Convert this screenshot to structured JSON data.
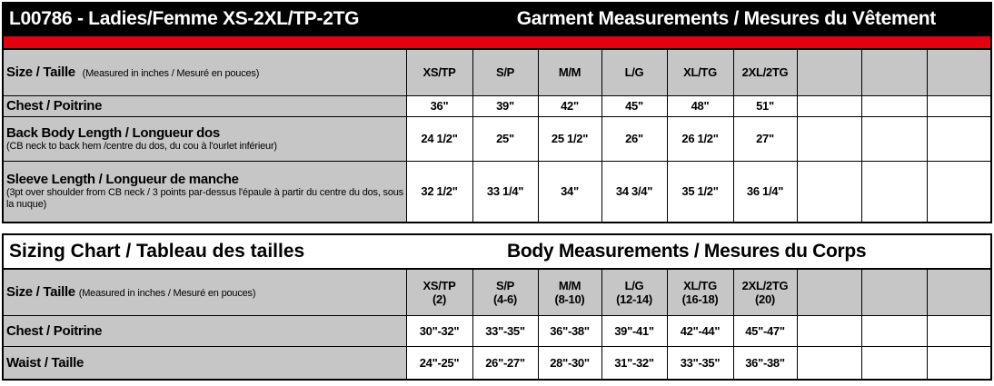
{
  "garment": {
    "title": "L00786 - Ladies/Femme XS-2XL/TP-2TG",
    "section": "Garment Measurements / Mesures du Vêtement",
    "size_label": "Size / Taille",
    "size_note": "(Measured in inches / Mesuré en pouces)",
    "sizes": [
      "XS/TP",
      "S/P",
      "M/M",
      "L/G",
      "XL/TG",
      "2XL/2TG"
    ],
    "rows": [
      {
        "label": "Chest / Poitrine",
        "note": "",
        "values": [
          "36\"",
          "39\"",
          "42\"",
          "45\"",
          "48\"",
          "51\""
        ]
      },
      {
        "label": "Back Body Length / Longueur dos",
        "note": "(CB neck to back hem /centre du dos, du cou à l'ourlet inférieur)",
        "values": [
          "24 1/2\"",
          "25\"",
          "25 1/2\"",
          "26\"",
          "26 1/2\"",
          "27\""
        ]
      },
      {
        "label": "Sleeve Length / Longueur de manche",
        "note": " (3pt over shoulder from CB neck / 3 points par-dessus l'épaule à partir du centre du dos, sous la nuque)",
        "values": [
          "32 1/2\"",
          "33 1/4\"",
          "34\"",
          "34 3/4\"",
          "35 1/2\"",
          "36 1/4\""
        ]
      }
    ]
  },
  "body": {
    "title": "Sizing Chart / Tableau des tailles",
    "section": "Body Measurements / Mesures du Corps",
    "size_label": "Size / Taille",
    "size_note": "(Measured in inches / Mesuré en pouces)",
    "sizes": [
      {
        "name": "XS/TP",
        "range": "(2)"
      },
      {
        "name": "S/P",
        "range": "(4-6)"
      },
      {
        "name": "M/M",
        "range": "(8-10)"
      },
      {
        "name": "L/G",
        "range": "(12-14)"
      },
      {
        "name": "XL/TG",
        "range": "(16-18)"
      },
      {
        "name": "2XL/2TG",
        "range": "(20)"
      }
    ],
    "rows": [
      {
        "label": "Chest / Poitrine",
        "values": [
          "30\"-32\"",
          "33\"-35\"",
          "36\"-38\"",
          "39\"-41\"",
          "42\"-44\"",
          "45\"-47\""
        ]
      },
      {
        "label": "Waist / Taille",
        "values": [
          "24\"-25\"",
          "26\"-27\"",
          "28\"-30\"",
          "31\"-32\"",
          "33\"-35\"",
          "36\"-38\""
        ]
      }
    ]
  },
  "colors": {
    "banner": "#000000",
    "accent_bar": "#e3000f",
    "header_fill": "#c6c6c6"
  }
}
